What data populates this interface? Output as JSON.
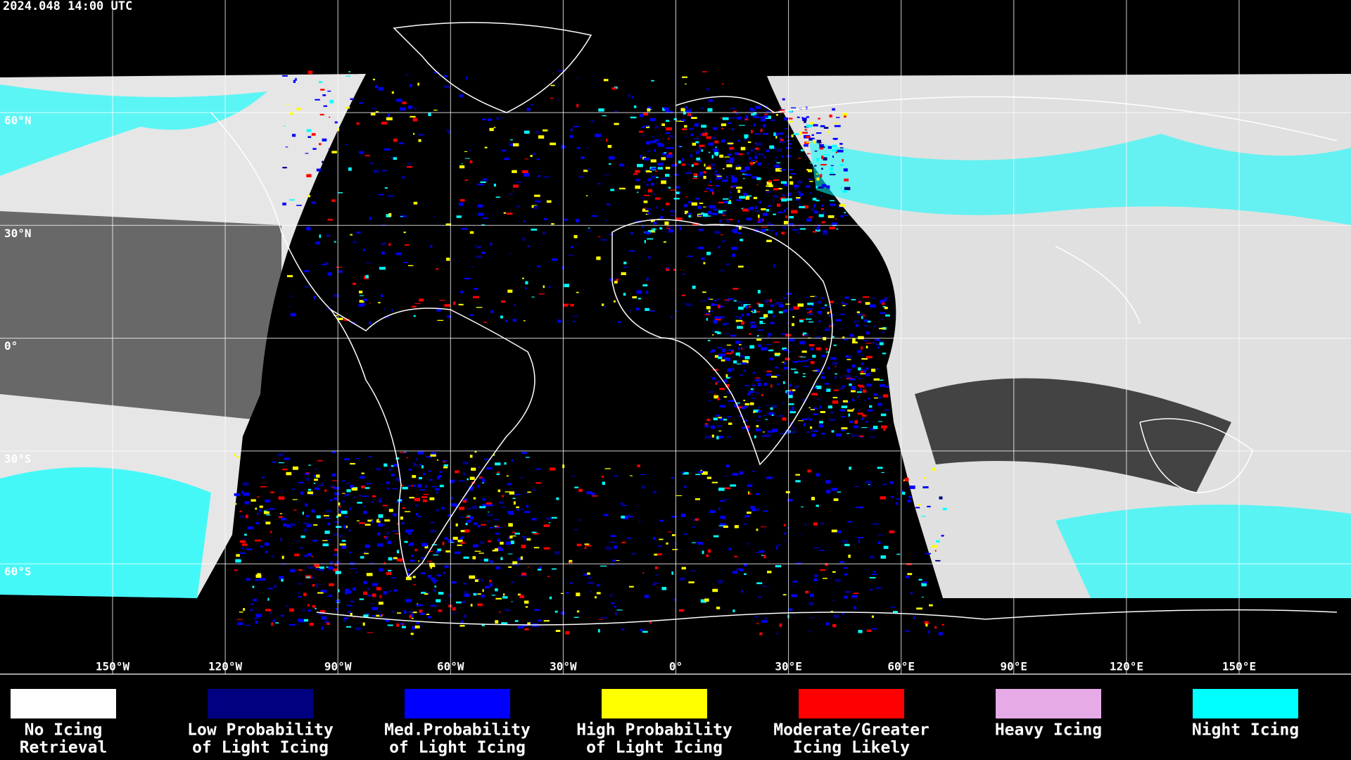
{
  "header": {
    "timestamp": "2024.048 14:00 UTC"
  },
  "lat_labels": [
    "60°N",
    "30°N",
    "0°",
    "30°S",
    "60°S"
  ],
  "lon_labels": [
    "150°W",
    "120°W",
    "90°W",
    "60°W",
    "30°W",
    "0°",
    "30°E",
    "60°E",
    "90°E",
    "120°E",
    "150°E"
  ],
  "legend": [
    {
      "color": "#ffffff",
      "label": [
        "No Icing",
        "Retrieval"
      ]
    },
    {
      "color": "#000080",
      "label": [
        "Low Probability",
        "of Light Icing"
      ]
    },
    {
      "color": "#0000ff",
      "label": [
        "Med.Probability",
        "of Light Icing"
      ]
    },
    {
      "color": "#ffff00",
      "label": [
        "High Probability",
        "of Light Icing"
      ]
    },
    {
      "color": "#ff0000",
      "label": [
        "Moderate/Greater",
        "Icing Likely"
      ]
    },
    {
      "color": "#e6aae6",
      "label": [
        "Heavy Icing"
      ]
    },
    {
      "color": "#00ffff",
      "label": [
        "Night Icing"
      ]
    }
  ]
}
